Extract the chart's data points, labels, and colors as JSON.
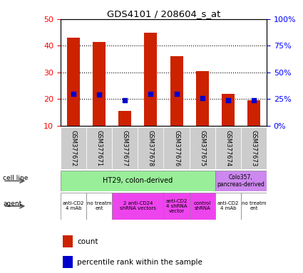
{
  "title": "GDS4101 / 208604_s_at",
  "samples": [
    "GSM377672",
    "GSM377671",
    "GSM377677",
    "GSM377678",
    "GSM377676",
    "GSM377675",
    "GSM377674",
    "GSM377673"
  ],
  "counts": [
    43,
    41.5,
    15.5,
    45,
    36,
    30.5,
    22,
    19.5
  ],
  "percentiles": [
    30,
    29,
    24,
    29.5,
    30,
    26,
    24,
    23.5
  ],
  "ylim_left": [
    10,
    50
  ],
  "ylim_right": [
    0,
    100
  ],
  "yticks_left": [
    10,
    20,
    30,
    40,
    50
  ],
  "yticks_right": [
    0,
    25,
    50,
    75,
    100
  ],
  "ytick_labels_right": [
    "0%",
    "25%",
    "50%",
    "75%",
    "100%"
  ],
  "bar_color": "#cc2200",
  "dot_color": "#0000cc",
  "cell_line_ht29_color": "#99ee99",
  "cell_line_colo_color": "#cc88ee",
  "cell_line_label": "HT29, colon-derived",
  "cell_line_label2": "Colo357,\npancreas-derived",
  "sample_bg_color": "#cccccc",
  "background_color": "#ffffff",
  "agent_groups": [
    {
      "span": [
        0,
        1
      ],
      "label": "anti-CD2\n4 mAb",
      "color": "#ffffff"
    },
    {
      "span": [
        1,
        2
      ],
      "label": "no treatm\nent",
      "color": "#ffffff"
    },
    {
      "span": [
        2,
        4
      ],
      "label": "2 anti-CD24\nshRNA vectors",
      "color": "#ee44ee"
    },
    {
      "span": [
        4,
        5
      ],
      "label": "anti-CD2\n4 shRNA\nvector",
      "color": "#ee44ee"
    },
    {
      "span": [
        5,
        6
      ],
      "label": "control\nshRNA",
      "color": "#ee44ee"
    },
    {
      "span": [
        6,
        7
      ],
      "label": "anti-CD2\n4 mAb",
      "color": "#ffffff"
    },
    {
      "span": [
        7,
        8
      ],
      "label": "no treatm\nent",
      "color": "#ffffff"
    }
  ]
}
